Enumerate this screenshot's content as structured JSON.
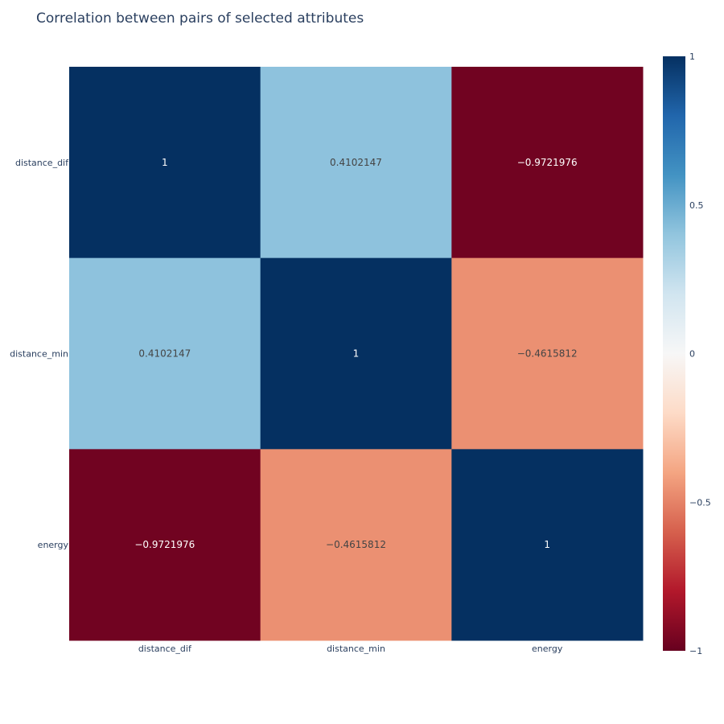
{
  "chart_data": {
    "type": "heatmap",
    "title": "Correlation between pairs of selected attributes",
    "x": [
      "distance_dif",
      "distance_min",
      "energy"
    ],
    "y": [
      "distance_dif",
      "distance_min",
      "energy"
    ],
    "z": [
      [
        1,
        0.4102147,
        -0.9721976
      ],
      [
        0.4102147,
        1,
        -0.4615812
      ],
      [
        -0.9721976,
        -0.4615812,
        1
      ]
    ],
    "text": [
      [
        "1",
        "0.4102147",
        "−0.9721976"
      ],
      [
        "0.4102147",
        "1",
        "−0.4615812"
      ],
      [
        "−0.9721976",
        "−0.4615812",
        "1"
      ]
    ],
    "zmin": -1,
    "zmax": 1,
    "colorscale": "RdBu",
    "colorscale_stops": [
      [
        0,
        "#67001f"
      ],
      [
        0.1,
        "#b2182b"
      ],
      [
        0.2,
        "#d6604d"
      ],
      [
        0.3,
        "#f4a582"
      ],
      [
        0.4,
        "#fddbc7"
      ],
      [
        0.5,
        "#f7f7f7"
      ],
      [
        0.6,
        "#d1e5f0"
      ],
      [
        0.7,
        "#92c5de"
      ],
      [
        0.8,
        "#4393c3"
      ],
      [
        0.9,
        "#2166ac"
      ],
      [
        1,
        "#053061"
      ]
    ],
    "colorbar": {
      "ticks": [
        1,
        0.5,
        0,
        -0.5,
        -1
      ],
      "tick_labels": [
        "1",
        "0.5",
        "0",
        "−0.5",
        "−1"
      ]
    },
    "xlabel": "",
    "ylabel": "",
    "grid": false,
    "legend": "colorbar-right"
  }
}
